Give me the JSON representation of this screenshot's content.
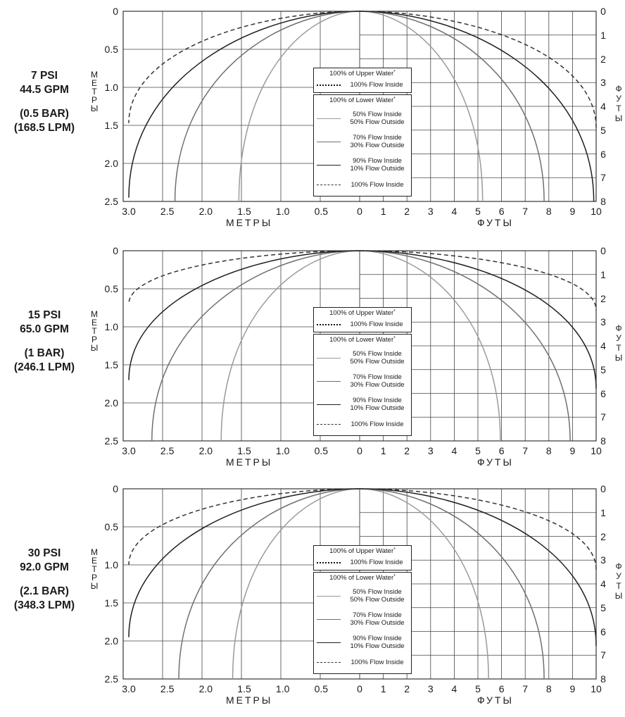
{
  "labels": {
    "y_left_letters": [
      "М",
      "Е",
      "Т",
      "Р",
      "Ы"
    ],
    "y_right_letters": [
      "Ф",
      "У",
      "Т",
      "Ы"
    ],
    "x_left": "МЕТРЫ",
    "x_right": "ФУТЫ",
    "x_left_ticks": [
      "3.0",
      "2.5",
      "2.0",
      "1.5",
      "1.0",
      "0.5",
      "0"
    ],
    "x_right_ticks": [
      "1",
      "2",
      "3",
      "4",
      "5",
      "6",
      "7",
      "8",
      "9",
      "10"
    ],
    "y_left_ticks": [
      "0",
      "0.5",
      "1.0",
      "1.5",
      "2.0",
      "2.5"
    ],
    "y_right_ticks": [
      "0",
      "1",
      "2",
      "3",
      "4",
      "5",
      "6",
      "7",
      "8"
    ]
  },
  "legend": {
    "upper_title": "100% of Upper Water",
    "upper_item": "100% Flow Inside",
    "lower_title": "100% of Lower Water",
    "asterisk": "*",
    "items": [
      {
        "line1": "50% Flow Inside",
        "line2": "50% Flow Outside"
      },
      {
        "line1": "70% Flow Inside",
        "line2": "30% Flow Outside"
      },
      {
        "line1": "90% Flow Inside",
        "line2": "10% Flow Outside"
      },
      {
        "line1": "100% Flow Inside",
        "line2": ""
      }
    ]
  },
  "panels": [
    {
      "psi": "7 PSI",
      "gpm": "44.5 GPM",
      "bar": "(0.5 BAR)",
      "lpm": "(168.5 LPM)"
    },
    {
      "psi": "15 PSI",
      "gpm": "65.0 GPM",
      "bar": "(1 BAR)",
      "lpm": "(246.1 LPM)"
    },
    {
      "psi": "30 PSI",
      "gpm": "92.0 GPM",
      "bar": "(2.1 BAR)",
      "lpm": "(348.3 LPM)"
    }
  ],
  "chart_data": [
    {
      "type": "line",
      "x_left_label": "МЕТРЫ",
      "x_right_label": "ФУТЫ",
      "y_left_label": "МЕТРЫ",
      "y_right_label": "ФУТЫ",
      "left_xlim": [
        3.0,
        0
      ],
      "right_xlim": [
        0,
        10
      ],
      "ylim": [
        0,
        2.5
      ],
      "right_ylim": [
        0,
        8
      ],
      "series": [
        {
          "name": "50% Flow Inside / 50% Flow Outside",
          "color": "#9a9a9a",
          "dash": "",
          "meters_x_at_bottom": 1.57,
          "feet_x_at_bottom": 5.2
        },
        {
          "name": "70% Flow Inside / 30% Flow Outside",
          "color": "#707070",
          "dash": "",
          "meters_x_at_bottom": 2.4,
          "feet_x_at_bottom": 7.8
        },
        {
          "name": "90% Flow Inside / 10% Flow Outside",
          "color": "#1f1f1f",
          "dash": "",
          "meters_x_at_bottom": 3.0,
          "meters_y_at_left": 2.45,
          "feet_x_at_bottom": 9.9
        },
        {
          "name": "100% Flow Inside",
          "color": "#333333",
          "dash": "6,4",
          "meters_x_at_left": 3.0,
          "meters_y_at_left": 1.47,
          "feet_x_at_right": 10,
          "feet_y_at_right": 4.9
        }
      ]
    },
    {
      "type": "line",
      "x_left_label": "МЕТРЫ",
      "x_right_label": "ФУТЫ",
      "y_left_label": "МЕТРЫ",
      "y_right_label": "ФУТЫ",
      "left_xlim": [
        3.0,
        0
      ],
      "right_xlim": [
        0,
        10
      ],
      "ylim": [
        0,
        2.5
      ],
      "right_ylim": [
        0,
        8
      ],
      "series": [
        {
          "name": "50% Flow Inside / 50% Flow Outside",
          "color": "#9a9a9a",
          "dash": "",
          "meters_x_at_bottom": 1.8,
          "feet_x_at_bottom": 5.95
        },
        {
          "name": "70% Flow Inside / 30% Flow Outside",
          "color": "#707070",
          "dash": "",
          "meters_x_at_bottom": 2.7,
          "feet_x_at_bottom": 8.9
        },
        {
          "name": "90% Flow Inside / 10% Flow Outside",
          "color": "#1f1f1f",
          "dash": "",
          "meters_x_at_left": 3.0,
          "meters_y_at_left": 1.7,
          "feet_x_at_right": 10,
          "feet_y_at_right": 5.8
        },
        {
          "name": "100% Flow Inside",
          "color": "#333333",
          "dash": "6,4",
          "meters_x_at_left": 3.0,
          "meters_y_at_left": 0.7,
          "feet_x_at_right": 10,
          "feet_y_at_right": 2.5
        }
      ]
    },
    {
      "type": "line",
      "x_left_label": "МЕТРЫ",
      "x_right_label": "ФУТЫ",
      "y_left_label": "МЕТРЫ",
      "y_right_label": "ФУТЫ",
      "left_xlim": [
        3.0,
        0
      ],
      "right_xlim": [
        0,
        10
      ],
      "ylim": [
        0,
        2.5
      ],
      "right_ylim": [
        0,
        8
      ],
      "series": [
        {
          "name": "50% Flow Inside / 50% Flow Outside",
          "color": "#9a9a9a",
          "dash": "",
          "meters_x_at_bottom": 1.65,
          "feet_x_at_bottom": 5.45
        },
        {
          "name": "70% Flow Inside / 30% Flow Outside",
          "color": "#707070",
          "dash": "",
          "meters_x_at_bottom": 2.35,
          "feet_x_at_bottom": 7.8
        },
        {
          "name": "90% Flow Inside / 10% Flow Outside",
          "color": "#1f1f1f",
          "dash": "",
          "meters_x_at_left": 3.0,
          "meters_y_at_left": 1.95,
          "feet_x_at_right": 10,
          "feet_y_at_right": 6.6
        },
        {
          "name": "100% Flow Inside",
          "color": "#333333",
          "dash": "6,4",
          "meters_x_at_left": 3.0,
          "meters_y_at_left": 1.0,
          "feet_x_at_right": 10,
          "feet_y_at_right": 3.4
        }
      ]
    }
  ]
}
